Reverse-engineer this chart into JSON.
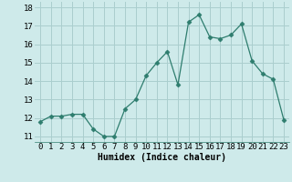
{
  "x": [
    0,
    1,
    2,
    3,
    4,
    5,
    6,
    7,
    8,
    9,
    10,
    11,
    12,
    13,
    14,
    15,
    16,
    17,
    18,
    19,
    20,
    21,
    22,
    23
  ],
  "y": [
    11.8,
    12.1,
    12.1,
    12.2,
    12.2,
    11.4,
    11.0,
    11.0,
    12.5,
    13.0,
    14.3,
    15.0,
    15.6,
    13.8,
    17.2,
    17.6,
    16.4,
    16.3,
    16.5,
    17.1,
    15.1,
    14.4,
    14.1,
    11.9
  ],
  "xlabel": "Humidex (Indice chaleur)",
  "xlim": [
    -0.5,
    23.5
  ],
  "ylim": [
    10.7,
    18.3
  ],
  "yticks": [
    11,
    12,
    13,
    14,
    15,
    16,
    17,
    18
  ],
  "xticks": [
    0,
    1,
    2,
    3,
    4,
    5,
    6,
    7,
    8,
    9,
    10,
    11,
    12,
    13,
    14,
    15,
    16,
    17,
    18,
    19,
    20,
    21,
    22,
    23
  ],
  "line_color": "#2e7d6e",
  "marker": "D",
  "marker_size": 2.5,
  "bg_color": "#ceeaea",
  "grid_color": "#aacece",
  "xlabel_fontsize": 7,
  "tick_fontsize": 6.5
}
